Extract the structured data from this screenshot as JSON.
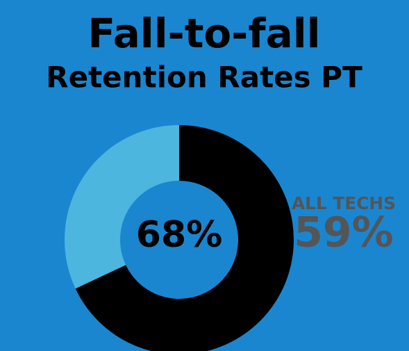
{
  "chart_data": {
    "type": "donut",
    "title": "Fall-to-fall",
    "subtitle": "Retention Rates PT",
    "values": [
      68,
      32
    ],
    "value_labels": [
      "68%",
      null
    ],
    "colors": [
      "#000000",
      "#4cb6df"
    ],
    "annotation": {
      "label": "ALL TECHS",
      "value": 59,
      "value_label": "59%"
    }
  }
}
